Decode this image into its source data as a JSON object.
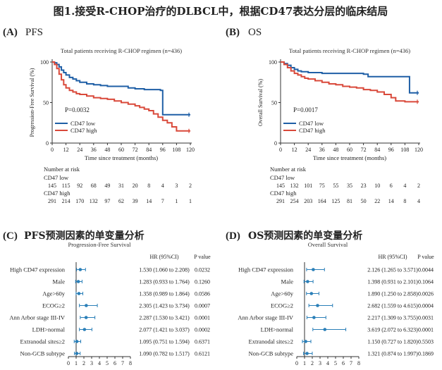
{
  "figure_title": "图1.接受R-CHOP治疗的DLBCL中，根据CD47表达分层的临床结局",
  "colors": {
    "low": "#1f5fa6",
    "high": "#d9493a",
    "forest": "#2a7fb8",
    "axis": "#333333"
  },
  "panels": {
    "A": {
      "tag": "(A)",
      "name": "PFS"
    },
    "B": {
      "tag": "(B)",
      "name": "OS"
    },
    "C": {
      "tag": "(C)",
      "name": "PFS预测因素的单变量分析"
    },
    "D": {
      "tag": "(D)",
      "name": "OS预测因素的单变量分析"
    }
  },
  "chart_data": [
    {
      "id": "A",
      "type": "line",
      "title": "Total patients receiving R-CHOP regimen (n=436)",
      "xlabel": "Time since treatment (months)",
      "ylabel": "Progression-Free Survival (%)",
      "xlim": [
        0,
        120
      ],
      "ylim": [
        0,
        100
      ],
      "xticks": [
        0,
        12,
        24,
        36,
        48,
        60,
        72,
        84,
        96,
        108,
        120
      ],
      "yticks": [
        0,
        50,
        100
      ],
      "pvalue": "P=0.0032",
      "legend": [
        "CD47 low",
        "CD47 high"
      ],
      "series": [
        {
          "name": "CD47 low",
          "x": [
            0,
            2,
            4,
            6,
            8,
            10,
            12,
            15,
            18,
            21,
            24,
            30,
            36,
            42,
            48,
            60,
            66,
            72,
            80,
            88,
            94,
            96,
            108,
            120
          ],
          "y": [
            100,
            99,
            97,
            94,
            90,
            87,
            84,
            81,
            79,
            77,
            75,
            73,
            72,
            71,
            70,
            70,
            68,
            67,
            66,
            66,
            65,
            35,
            35,
            35
          ]
        },
        {
          "name": "CD47 high",
          "x": [
            0,
            2,
            4,
            6,
            8,
            10,
            12,
            15,
            18,
            21,
            24,
            30,
            36,
            42,
            48,
            54,
            60,
            66,
            72,
            76,
            80,
            84,
            88,
            92,
            96,
            100,
            104,
            108,
            120
          ],
          "y": [
            100,
            97,
            92,
            85,
            78,
            72,
            68,
            65,
            63,
            61,
            60,
            58,
            56,
            55,
            54,
            52,
            50,
            48,
            46,
            44,
            42,
            40,
            36,
            32,
            28,
            25,
            20,
            15,
            15
          ]
        }
      ],
      "risk_header": "Number at risk",
      "risk_table": [
        {
          "label": "CD47 low",
          "values": [
            "145",
            "115",
            "92",
            "68",
            "49",
            "31",
            "20",
            "8",
            "4",
            "3",
            "2"
          ]
        },
        {
          "label": "CD47 high",
          "values": [
            "291",
            "214",
            "170",
            "132",
            "97",
            "62",
            "39",
            "14",
            "7",
            "1",
            "1"
          ]
        }
      ]
    },
    {
      "id": "B",
      "type": "line",
      "title": "Total patients receiving R-CHOP regimen (n=436)",
      "xlabel": "Time since treatment (months)",
      "ylabel": "Overall Survival (%)",
      "xlim": [
        0,
        120
      ],
      "ylim": [
        0,
        100
      ],
      "xticks": [
        0,
        12,
        24,
        36,
        48,
        60,
        72,
        84,
        96,
        108,
        120
      ],
      "yticks": [
        0,
        50,
        100
      ],
      "pvalue": "P=0.0017",
      "legend": [
        "CD47 low",
        "CD47 high"
      ],
      "series": [
        {
          "name": "CD47 low",
          "x": [
            0,
            3,
            6,
            9,
            12,
            15,
            18,
            24,
            30,
            36,
            48,
            60,
            72,
            76,
            84,
            96,
            108,
            112,
            120
          ],
          "y": [
            100,
            98,
            96,
            93,
            91,
            89,
            88,
            87,
            87,
            86,
            86,
            86,
            85,
            82,
            82,
            82,
            82,
            62,
            62
          ]
        },
        {
          "name": "CD47 high",
          "x": [
            0,
            3,
            6,
            9,
            12,
            15,
            18,
            21,
            24,
            30,
            36,
            42,
            48,
            54,
            60,
            66,
            72,
            78,
            84,
            90,
            96,
            100,
            108,
            120
          ],
          "y": [
            100,
            97,
            93,
            89,
            86,
            84,
            82,
            80,
            79,
            77,
            75,
            73,
            72,
            70,
            69,
            68,
            66,
            65,
            63,
            60,
            56,
            52,
            51,
            51
          ]
        }
      ],
      "risk_header": "Number at risk",
      "risk_table": [
        {
          "label": "CD47 low",
          "values": [
            "145",
            "132",
            "101",
            "75",
            "55",
            "35",
            "23",
            "10",
            "6",
            "4",
            "2"
          ]
        },
        {
          "label": "CD47 high",
          "values": [
            "291",
            "254",
            "203",
            "164",
            "125",
            "81",
            "50",
            "22",
            "14",
            "8",
            "4"
          ]
        }
      ]
    },
    {
      "id": "C",
      "type": "forest",
      "title": "Progression-Free Survival",
      "col_hr": "HR (95%CI)",
      "col_p": "P value",
      "xlim": [
        0,
        8
      ],
      "xticks": [
        0,
        1,
        2,
        3,
        4,
        5,
        6,
        7,
        8
      ],
      "rows": [
        {
          "label": "High CD47 expression",
          "hr": 1.53,
          "lo": 1.06,
          "hi": 2.208,
          "hr_text": "1.530 (1.060 to 2.208)",
          "p": "0.0232"
        },
        {
          "label": "Male",
          "hr": 1.283,
          "lo": 0.933,
          "hi": 1.764,
          "hr_text": "1.283 (0.933 to 1.764)",
          "p": "0.1260"
        },
        {
          "label": "Age>60y",
          "hr": 1.358,
          "lo": 0.989,
          "hi": 1.864,
          "hr_text": "1.358 (0.989 to 1.864)",
          "p": "0.0586"
        },
        {
          "label": "ECOG≥2",
          "hr": 2.305,
          "lo": 1.423,
          "hi": 3.734,
          "hr_text": "2.305 (1.423 to 3.734)",
          "p": "0.0007"
        },
        {
          "label": "Ann Arbor stage III-IV",
          "hr": 2.287,
          "lo": 1.53,
          "hi": 3.421,
          "hr_text": "2.287 (1.530 to 3.421)",
          "p": "0.0001"
        },
        {
          "label": "LDH>normal",
          "hr": 2.077,
          "lo": 1.421,
          "hi": 3.037,
          "hr_text": "2.077 (1.421 to 3.037)",
          "p": "0.0002"
        },
        {
          "label": "Extranodal sites≥2",
          "hr": 1.095,
          "lo": 0.751,
          "hi": 1.594,
          "hr_text": "1.095 (0.751 to 1.594)",
          "p": "0.6371"
        },
        {
          "label": "Non-GCB subtype",
          "hr": 1.09,
          "lo": 0.782,
          "hi": 1.517,
          "hr_text": "1.090 (0.782 to 1.517)",
          "p": "0.6121"
        }
      ]
    },
    {
      "id": "D",
      "type": "forest",
      "title": "Overall Survival",
      "col_hr": "HR (95%CI)",
      "col_p": "P value",
      "xlim": [
        0,
        8
      ],
      "xticks": [
        0,
        1,
        2,
        3,
        4,
        5,
        6,
        7,
        8
      ],
      "rows": [
        {
          "label": "High CD47 expression",
          "hr": 2.126,
          "lo": 1.265,
          "hi": 3.571,
          "hr_text": "2.126 (1.265 to 3.571)",
          "p": "0.0044"
        },
        {
          "label": "Male",
          "hr": 1.398,
          "lo": 0.931,
          "hi": 2.101,
          "hr_text": "1.398 (0.931 to 2.101)",
          "p": "0.1064"
        },
        {
          "label": "Age>60y",
          "hr": 1.89,
          "lo": 1.25,
          "hi": 2.858,
          "hr_text": "1.890 (1.250 to 2.858)",
          "p": "0.0026"
        },
        {
          "label": "ECOG≥2",
          "hr": 2.682,
          "lo": 1.559,
          "hi": 4.615,
          "hr_text": "2.682 (1.559 to 4.615)",
          "p": "0.0004"
        },
        {
          "label": "Ann Arbor stage III-IV",
          "hr": 2.217,
          "lo": 1.309,
          "hi": 3.755,
          "hr_text": "2.217 (1.309 to 3.755)",
          "p": "0.0031"
        },
        {
          "label": "LDH>normal",
          "hr": 3.619,
          "lo": 2.072,
          "hi": 6.323,
          "hr_text": "3.619 (2.072 to 6.323)",
          "p": "0.0001"
        },
        {
          "label": "Extranodal sites≥2",
          "hr": 1.15,
          "lo": 0.727,
          "hi": 1.82,
          "hr_text": "1.150 (0.727 to 1.820)",
          "p": "0.5503"
        },
        {
          "label": "Non-GCB subtype",
          "hr": 1.321,
          "lo": 0.874,
          "hi": 1.997,
          "hr_text": "1.321 (0.874 to 1.997)",
          "p": "0.1869"
        }
      ]
    }
  ]
}
